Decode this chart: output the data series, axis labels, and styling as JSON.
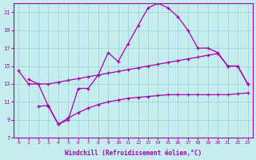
{
  "xlabel": "Windchill (Refroidissement éolien,°C)",
  "xlim": [
    -0.5,
    23.5
  ],
  "ylim": [
    7,
    22
  ],
  "xticks": [
    0,
    1,
    2,
    3,
    4,
    5,
    6,
    7,
    8,
    9,
    10,
    11,
    12,
    13,
    14,
    15,
    16,
    17,
    18,
    19,
    20,
    21,
    22,
    23
  ],
  "yticks": [
    7,
    9,
    11,
    13,
    15,
    17,
    19,
    21
  ],
  "background_color": "#c5ecee",
  "grid_color": "#9dcdd4",
  "line_color": "#aa00aa",
  "line1_x": [
    1,
    2,
    3,
    4,
    5,
    6,
    7,
    8,
    9,
    10,
    11,
    12,
    13,
    14,
    15,
    16,
    17,
    18,
    19,
    20,
    21,
    22,
    23
  ],
  "line1_y": [
    13.5,
    13.0,
    10.5,
    8.5,
    9.0,
    12.5,
    12.5,
    14.0,
    16.5,
    15.5,
    17.5,
    19.5,
    21.5,
    22.0,
    21.5,
    20.5,
    19.0,
    17.0,
    17.0,
    16.5,
    15.0,
    15.0,
    13.0
  ],
  "line2_x": [
    0,
    1,
    2,
    3,
    4,
    5,
    6,
    7,
    8,
    9,
    10,
    11,
    12,
    13,
    14,
    15,
    16,
    17,
    18,
    19,
    20,
    21,
    22,
    23
  ],
  "line2_y": [
    14.5,
    13.0,
    13.0,
    13.0,
    13.2,
    13.4,
    13.6,
    13.8,
    14.0,
    14.2,
    14.4,
    14.6,
    14.8,
    15.0,
    15.2,
    15.4,
    15.6,
    15.8,
    16.0,
    16.2,
    16.4,
    15.0,
    15.0,
    13.0
  ],
  "line3_x": [
    2,
    3,
    4,
    5,
    6,
    7,
    8,
    9,
    10,
    11,
    12,
    13,
    14,
    15,
    16,
    17,
    18,
    19,
    20,
    21,
    22,
    23
  ],
  "line3_y": [
    10.5,
    10.6,
    8.5,
    9.2,
    9.8,
    10.3,
    10.7,
    11.0,
    11.2,
    11.4,
    11.5,
    11.6,
    11.7,
    11.8,
    11.8,
    11.8,
    11.8,
    11.8,
    11.8,
    11.8,
    11.9,
    12.0
  ]
}
